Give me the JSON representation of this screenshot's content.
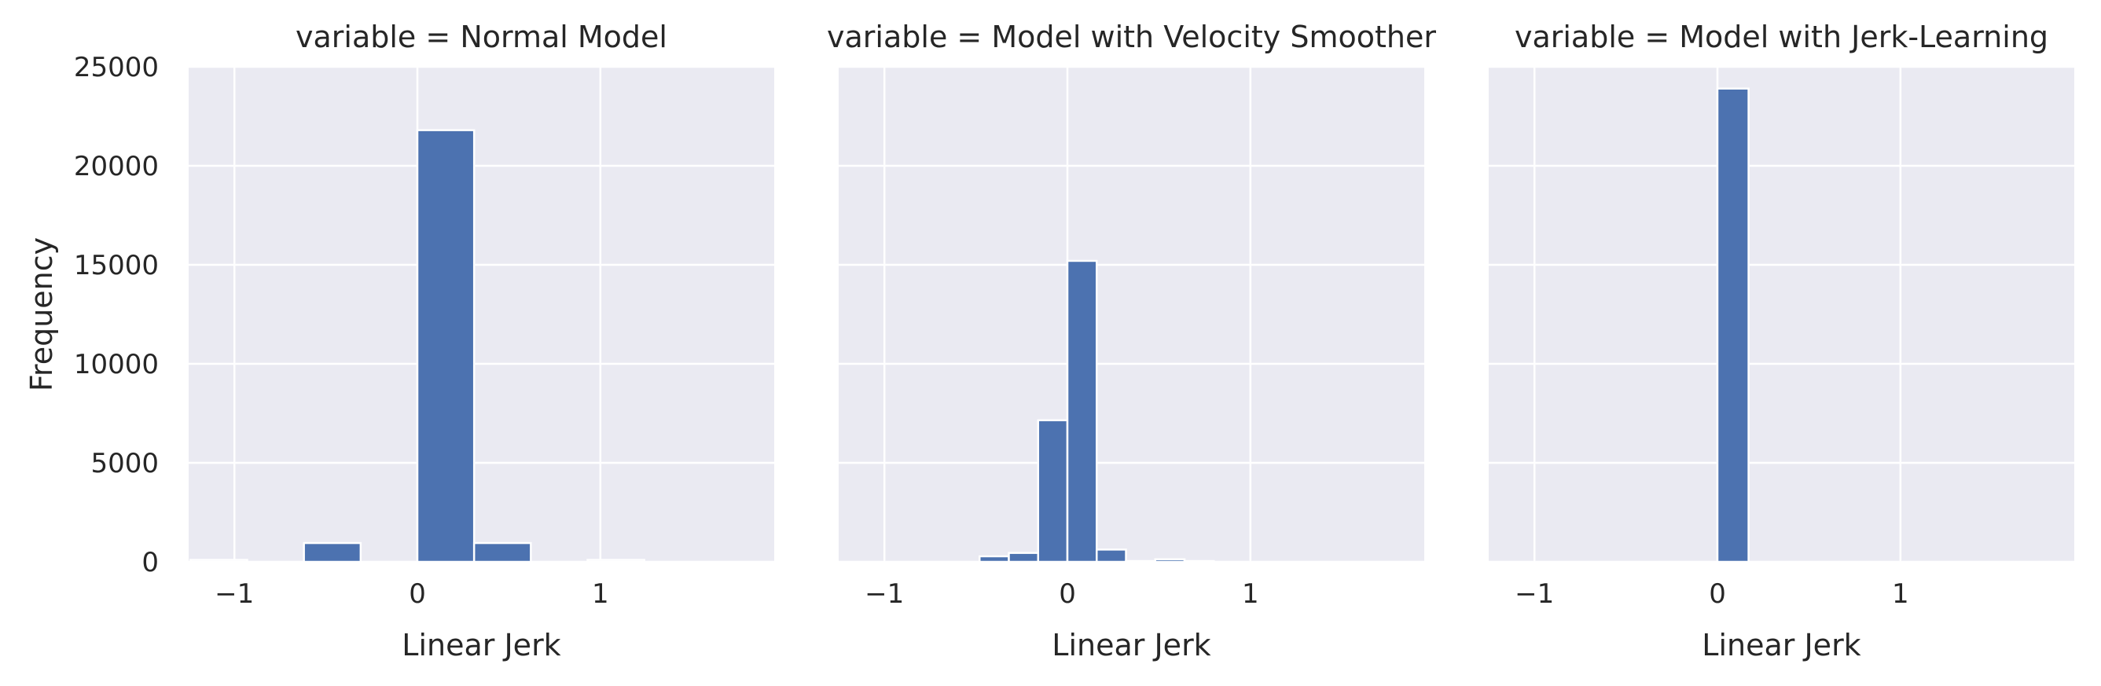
{
  "chart_data": [
    {
      "type": "bar",
      "title": "variable = Normal Model",
      "xlabel": "Linear Jerk",
      "ylabel": "Frequency",
      "xlim": [
        -1.25,
        1.95
      ],
      "ylim": [
        0,
        25000
      ],
      "xticks": [
        -1,
        0,
        1
      ],
      "xtick_labels": [
        "−1",
        "0",
        "1"
      ],
      "yticks": [
        0,
        5000,
        10000,
        15000,
        20000,
        25000
      ],
      "ytick_labels": [
        "0",
        "5000",
        "10000",
        "15000",
        "20000",
        "25000"
      ],
      "grid": true,
      "bar_color": "#4c72b0",
      "bins": [
        {
          "x0": -1.24,
          "x1": -0.93,
          "value": 100
        },
        {
          "x0": -0.93,
          "x1": -0.62,
          "value": 0
        },
        {
          "x0": -0.62,
          "x1": -0.31,
          "value": 950
        },
        {
          "x0": -0.31,
          "x1": 0.0,
          "value": 0
        },
        {
          "x0": 0.0,
          "x1": 0.31,
          "value": 21800
        },
        {
          "x0": 0.31,
          "x1": 0.62,
          "value": 950
        },
        {
          "x0": 0.62,
          "x1": 0.93,
          "value": 0
        },
        {
          "x0": 0.93,
          "x1": 1.24,
          "value": 100
        }
      ]
    },
    {
      "type": "bar",
      "title": "variable = Model with Velocity Smoother",
      "xlabel": "Linear Jerk",
      "ylabel": "",
      "xlim": [
        -1.25,
        1.95
      ],
      "ylim": [
        0,
        25000
      ],
      "xticks": [
        -1,
        0,
        1
      ],
      "xtick_labels": [
        "−1",
        "0",
        "1"
      ],
      "yticks": [
        0,
        5000,
        10000,
        15000,
        20000,
        25000
      ],
      "ytick_labels": [],
      "grid": true,
      "bar_color": "#4c72b0",
      "bins": [
        {
          "x0": -0.48,
          "x1": -0.32,
          "value": 280
        },
        {
          "x0": -0.32,
          "x1": -0.16,
          "value": 450
        },
        {
          "x0": -0.16,
          "x1": 0.0,
          "value": 7150
        },
        {
          "x0": 0.0,
          "x1": 0.16,
          "value": 15200
        },
        {
          "x0": 0.16,
          "x1": 0.32,
          "value": 620
        },
        {
          "x0": 0.32,
          "x1": 0.48,
          "value": 40
        },
        {
          "x0": 0.48,
          "x1": 0.64,
          "value": 130
        },
        {
          "x0": 0.64,
          "x1": 0.8,
          "value": 40
        }
      ]
    },
    {
      "type": "bar",
      "title": "variable = Model with Jerk-Learning",
      "xlabel": "Linear Jerk",
      "ylabel": "",
      "xlim": [
        -1.25,
        1.95
      ],
      "ylim": [
        0,
        25000
      ],
      "xticks": [
        -1,
        0,
        1
      ],
      "xtick_labels": [
        "−1",
        "0",
        "1"
      ],
      "yticks": [
        0,
        5000,
        10000,
        15000,
        20000,
        25000
      ],
      "ytick_labels": [],
      "grid": true,
      "bar_color": "#4c72b0",
      "bins": [
        {
          "x0": 0.0,
          "x1": 0.17,
          "value": 23900
        }
      ]
    }
  ]
}
